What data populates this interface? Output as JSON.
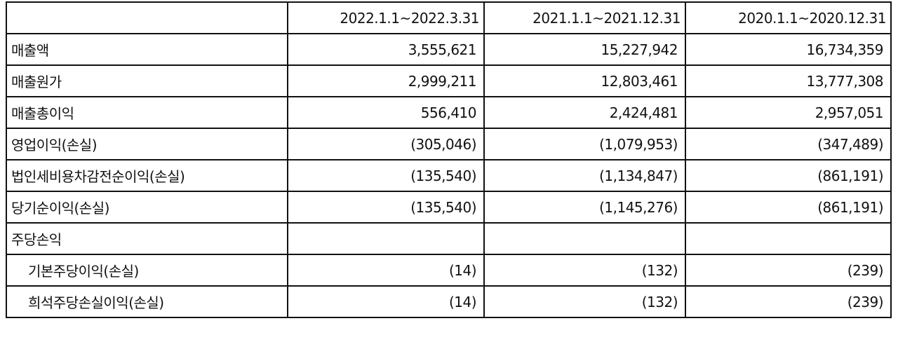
{
  "table": {
    "columns": [
      "2022.1.1~2022.3.31",
      "2021.1.1~2021.12.31",
      "2020.1.1~2020.12.31"
    ],
    "rows": [
      {
        "label": "매출액",
        "values": [
          "3,555,621",
          "15,227,942",
          "16,734,359"
        ]
      },
      {
        "label": "매출원가",
        "values": [
          "2,999,211",
          "12,803,461",
          "13,777,308"
        ]
      },
      {
        "label": "매출총이익",
        "values": [
          "556,410",
          "2,424,481",
          "2,957,051"
        ]
      },
      {
        "label": "영업이익(손실)",
        "values": [
          "(305,046)",
          "(1,079,953)",
          "(347,489)"
        ]
      },
      {
        "label": "법인세비용차감전순이익(손실)",
        "values": [
          "(135,540)",
          "(1,134,847)",
          "(861,191)"
        ]
      },
      {
        "label": "당기순이익(손실)",
        "values": [
          "(135,540)",
          "(1,145,276)",
          "(861,191)"
        ]
      },
      {
        "label": "주당손익",
        "children": [
          {
            "label": "기본주당이익(손실)",
            "values": [
              "(14)",
              "(132)",
              "(239)"
            ]
          },
          {
            "label": "희석주당손실이익(손실)",
            "values": [
              "(14)",
              "(132)",
              "(239)"
            ]
          }
        ]
      }
    ]
  }
}
